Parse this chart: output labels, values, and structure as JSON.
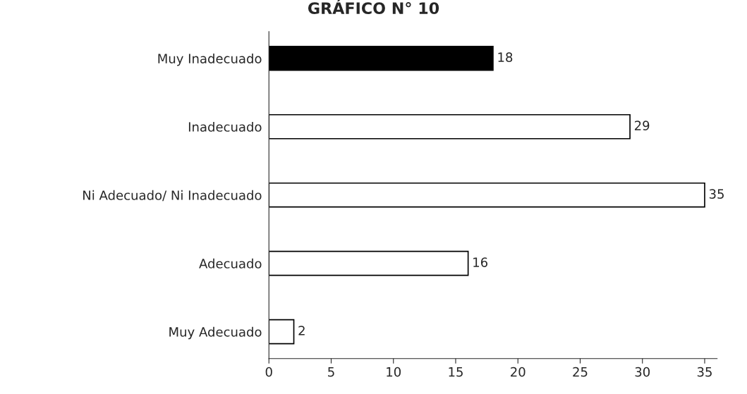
{
  "chart_data": {
    "type": "bar",
    "orientation": "horizontal",
    "title": "GRÁFICO N° 10",
    "categories": [
      "Muy Inadecuado",
      "Inadecuado",
      "Ni Adecuado/ Ni Inadecuado",
      "Adecuado",
      "Muy Adecuado"
    ],
    "values": [
      18,
      29,
      35,
      16,
      2
    ],
    "colors": [
      "#000000",
      "#ffffff",
      "#ffffff",
      "#ffffff",
      "#ffffff"
    ],
    "xlim": [
      0,
      36
    ],
    "xticks": [
      0,
      5,
      10,
      15,
      20,
      25,
      30,
      35
    ],
    "data_labels": true,
    "grid": false
  }
}
